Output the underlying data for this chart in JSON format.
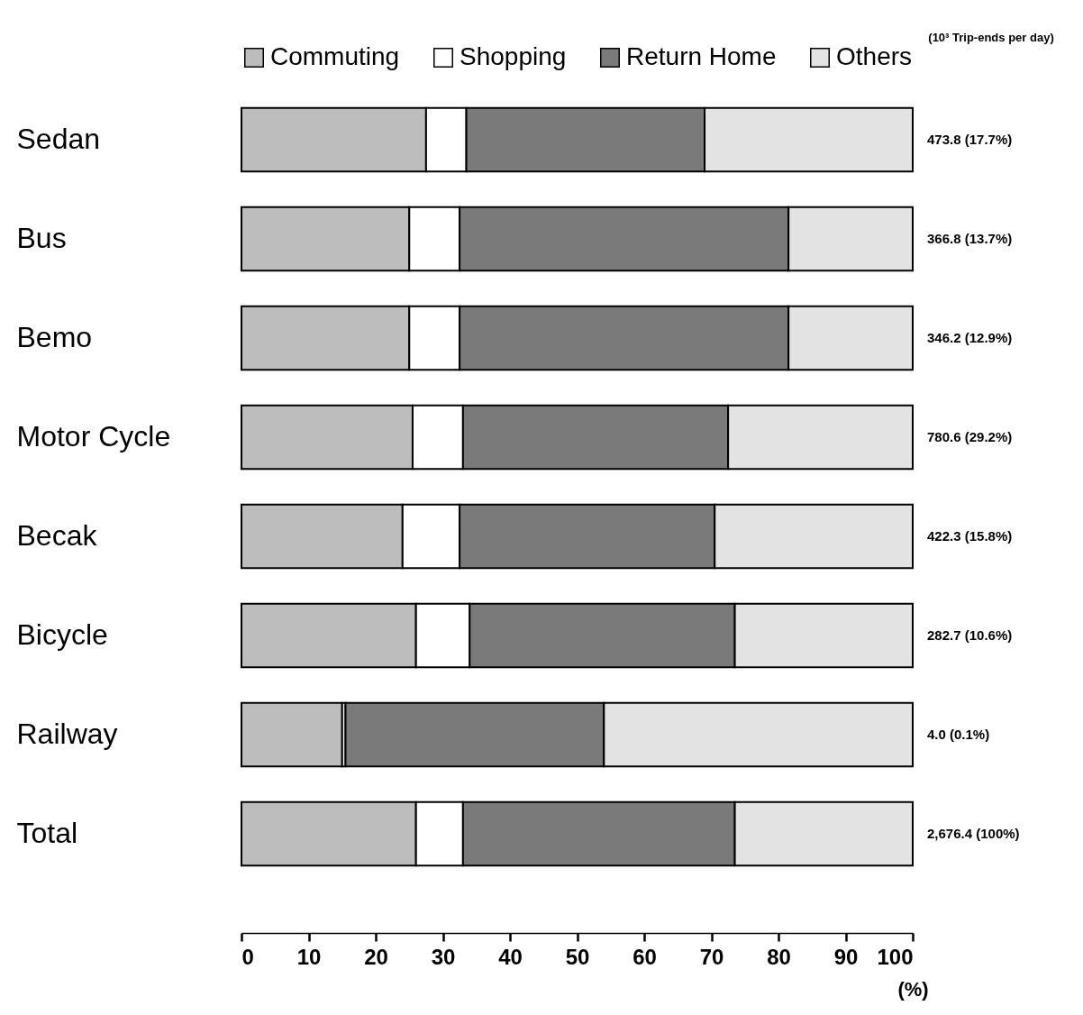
{
  "chart_data": {
    "type": "bar",
    "orientation": "horizontal",
    "stacked": true,
    "categories": [
      "Sedan",
      "Bus",
      "Bemo",
      "Motor Cycle",
      "Becak",
      "Bicycle",
      "Railway",
      "Total"
    ],
    "series": [
      {
        "name": "Commuting",
        "color": "#bdbdbd",
        "values": [
          27.5,
          25,
          25,
          25.5,
          24,
          26,
          15,
          26
        ]
      },
      {
        "name": "Shopping",
        "color": "#ffffff",
        "values": [
          6,
          7.5,
          7.5,
          7.5,
          8.5,
          8,
          0.5,
          7
        ]
      },
      {
        "name": "Return Home",
        "color": "#7a7a7a",
        "values": [
          35.5,
          49,
          49,
          39.5,
          38,
          39.5,
          38.5,
          40.5
        ]
      },
      {
        "name": "Others",
        "color": "#e3e3e3",
        "values": [
          31,
          18.5,
          18.5,
          27.5,
          29.5,
          26.5,
          46,
          26.5
        ]
      }
    ],
    "xlim": [
      0,
      100
    ],
    "xticks": [
      0,
      10,
      20,
      30,
      40,
      50,
      60,
      70,
      80,
      90,
      100
    ],
    "xlabel": "(%)",
    "totals": [
      "473.8 (17.7%)",
      "366.8 (13.7%)",
      "346.2 (12.9%)",
      "780.6 (29.2%)",
      "422.3 (15.8%)",
      "282.7 (10.6%)",
      "4.0 (0.1%)",
      "2,676.4 (100%)"
    ],
    "annotations": [
      "(10³ Trip-ends per day)"
    ],
    "legend": "top",
    "grid": false
  }
}
